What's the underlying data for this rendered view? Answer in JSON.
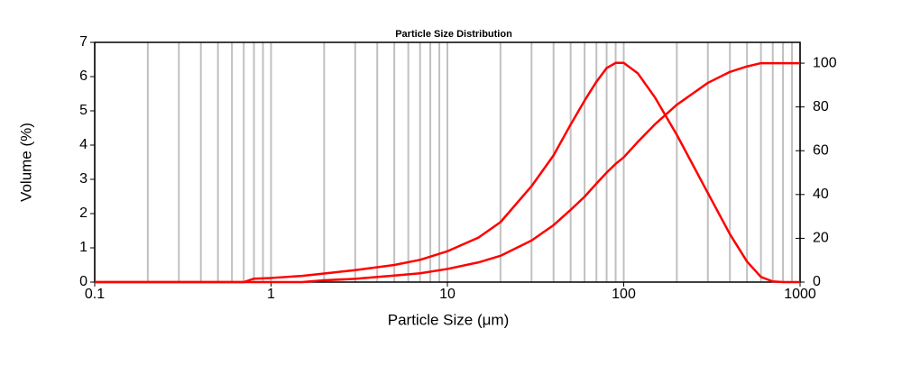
{
  "chart_data": {
    "type": "line",
    "title": "Particle Size Distribution",
    "x_label": "Particle Size (μm)",
    "y_label": "Volume (%)",
    "x": [
      0.1,
      0.7,
      0.8,
      1,
      1.5,
      2,
      3,
      5,
      7,
      10,
      15,
      20,
      30,
      40,
      50,
      60,
      70,
      80,
      90,
      100,
      120,
      150,
      200,
      300,
      400,
      500,
      600,
      700,
      800,
      1000
    ],
    "series": [
      {
        "color": "#ff0000",
        "values": [
          0,
          0,
          0.1,
          0.12,
          0.18,
          0.25,
          0.35,
          0.5,
          0.65,
          0.9,
          1.3,
          1.75,
          2.8,
          3.7,
          4.6,
          5.3,
          5.85,
          6.25,
          6.4,
          6.4,
          6.1,
          5.4,
          4.3,
          2.6,
          1.4,
          0.6,
          0.15,
          0.02,
          0,
          0
        ]
      },
      {
        "color": "#ff0000",
        "axis": "y2",
        "values": [
          0,
          0,
          0,
          0,
          0,
          0.8,
          1.5,
          3,
          4,
          6,
          9,
          12,
          19,
          26,
          33,
          39,
          45,
          50,
          54,
          57,
          64,
          72,
          81,
          91,
          96,
          98.5,
          100,
          100,
          100,
          100
        ]
      }
    ],
    "xlim": [
      0.1,
      1000
    ],
    "xticks": [
      0.1,
      1,
      10,
      100,
      1000
    ],
    "log_x": true,
    "ylim": [
      0,
      7
    ],
    "yticks": [
      0,
      1,
      2,
      3,
      4,
      5,
      6,
      7
    ],
    "y2lim": [
      0,
      109.5
    ],
    "y2ticks": [
      0,
      20,
      40,
      60,
      80,
      100
    ],
    "grid": true
  }
}
